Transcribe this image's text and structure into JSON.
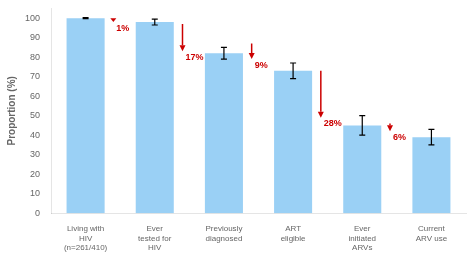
{
  "chart_data": {
    "type": "bar",
    "categories": [
      "Living with\nHIV\n(n=261/410)",
      "Ever\ntested for\nHIV",
      "Previously\ndiagnosed",
      "ART\neligible",
      "Ever\ninitiated\nARVs",
      "Current\nARV use"
    ],
    "values": [
      100,
      98,
      82,
      73,
      45,
      39
    ],
    "errors": [
      0.3,
      1.5,
      3.0,
      4.0,
      5.0,
      4.0
    ],
    "ylabel": "Proportion (%)",
    "ylim": [
      0,
      105
    ],
    "yticks": [
      0,
      10,
      20,
      30,
      40,
      50,
      60,
      70,
      80,
      90,
      100
    ],
    "grid": false,
    "annotations": [
      {
        "text": "1%",
        "from": 100,
        "to": 98,
        "color": "#cc0000"
      },
      {
        "text": "17%",
        "from": 97,
        "to": 83,
        "color": "#cc0000"
      },
      {
        "text": "9%",
        "from": 87,
        "to": 79,
        "color": "#cc0000"
      },
      {
        "text": "28%",
        "from": 73,
        "to": 49,
        "color": "#cc0000"
      },
      {
        "text": "6%",
        "from": 46,
        "to": 42,
        "color": "#cc0000"
      }
    ]
  }
}
